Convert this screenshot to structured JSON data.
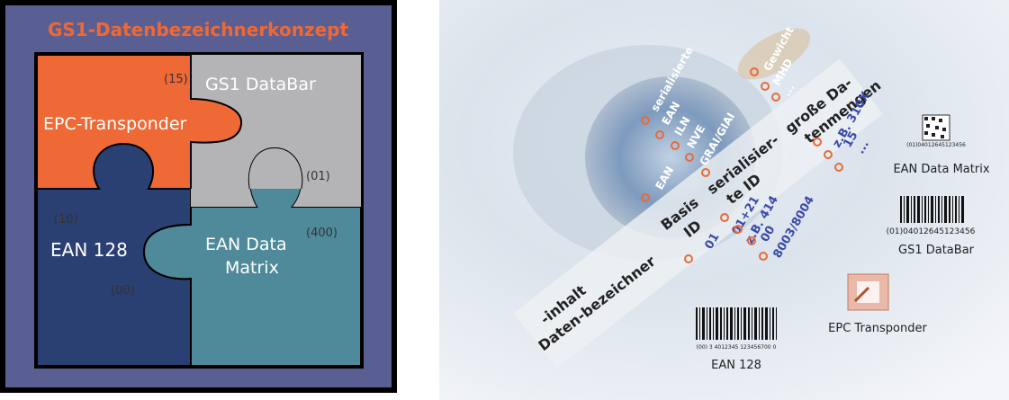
{
  "left_panel": {
    "title": "GS1-Datenbezeichnerkonzept",
    "pieces": {
      "epc": {
        "label": "EPC-Transponder",
        "number": "(15)"
      },
      "databar": {
        "label": "GS1 DataBar",
        "number": "(01)"
      },
      "ean128": {
        "label": "EAN 128",
        "number": "(10)",
        "number2": "(00)"
      },
      "datamatrix": {
        "label_line1": "EAN Data",
        "label_line2": "Matrix",
        "number": "(400)"
      }
    },
    "colors": {
      "frame": "#5a5f93",
      "epc": "#ee6935",
      "databar": "#b4b4b6",
      "ean128": "#2a3f72",
      "datamatrix": "#4f8a9a",
      "title": "#ee6935"
    }
  },
  "right_panel": {
    "band": {
      "col1_line1": "-inhalt",
      "col1_line2": "Daten-bezeichner",
      "col2_line1": "Basis",
      "col2_line2": "ID",
      "col3_line1": "serialisier-",
      "col3_line2": "te ID",
      "col4_line1": "große Da-",
      "col4_line2": "tenmengen"
    },
    "white_labels": [
      "serialisierte",
      "EAN",
      "ILN",
      "NVE",
      "GRAI/GIAI",
      "EAN",
      "Gewicht",
      "MHD",
      "..."
    ],
    "blue_codes": [
      "01",
      "01+21",
      "z.B. 414",
      "00",
      "8003/8004",
      "z.B. 310X",
      "15",
      "..."
    ],
    "captions": {
      "datamatrix": "EAN Data Matrix",
      "databar": "GS1 DataBar",
      "epc": "EPC Transponder",
      "ean128": "EAN 128"
    },
    "barcode_numbers": {
      "datamatrix": "(01)04012645123456",
      "databar": "(01)04012645123456",
      "ean128": "(00) 3 4012345 123456700 0"
    }
  }
}
